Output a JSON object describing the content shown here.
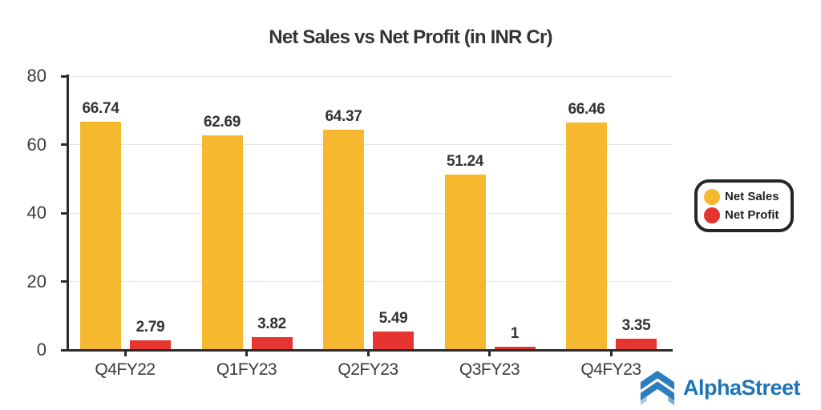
{
  "chart_data": {
    "type": "bar",
    "title": "Net Sales vs Net Profit (in INR Cr)",
    "categories": [
      "Q4FY22",
      "Q1FY23",
      "Q2FY23",
      "Q3FY23",
      "Q4FY23"
    ],
    "series": [
      {
        "name": "Net Sales",
        "color": "#F5B82F",
        "values": [
          66.74,
          62.69,
          64.37,
          51.24,
          66.46
        ]
      },
      {
        "name": "Net Profit",
        "color": "#E63431",
        "values": [
          2.79,
          3.82,
          5.49,
          1,
          3.35
        ]
      }
    ],
    "xlabel": "",
    "ylabel": "",
    "ylim": [
      0,
      80
    ],
    "yticks": [
      0,
      20,
      40,
      60,
      80
    ],
    "grid": true,
    "value_labels": true,
    "legend_position": "middle-right"
  },
  "branding": {
    "logo_text": "AlphaStreet",
    "logo_color": "#1E74B6"
  },
  "theme": {
    "background": "#FFFFFF",
    "axis_color": "#2B2B2B",
    "grid_color": "#E7E7E7",
    "text_color": "#3B3B3B"
  }
}
